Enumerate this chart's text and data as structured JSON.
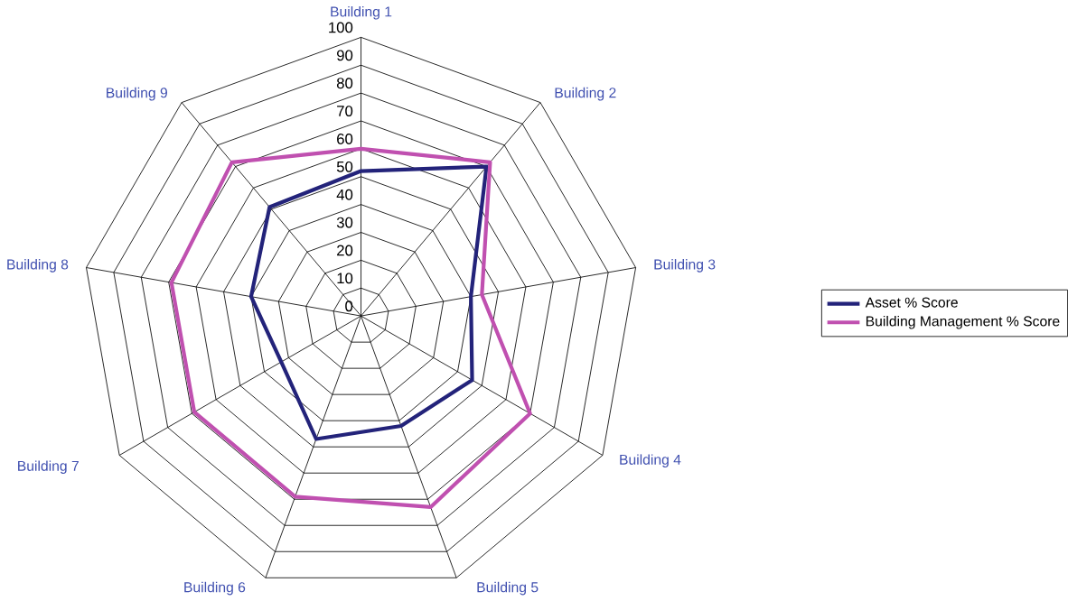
{
  "chart_data": {
    "type": "radar",
    "categories": [
      "Building 1",
      "Building 2",
      "Building 3",
      "Building 4",
      "Building 5",
      "Building 6",
      "Building 7",
      "Building 8",
      "Building 9"
    ],
    "series": [
      {
        "name": "Asset % Score",
        "color": "#23237a",
        "values": [
          52,
          70,
          40,
          46,
          42,
          47,
          33,
          40,
          51
        ]
      },
      {
        "name": "Building Management % Score",
        "color": "#c050b0",
        "values": [
          60,
          72,
          44,
          70,
          73,
          69,
          69,
          69,
          72
        ]
      }
    ],
    "ylim": [
      0,
      100
    ],
    "yticks": [
      0,
      10,
      20,
      30,
      40,
      50,
      60,
      70,
      80,
      90,
      100
    ],
    "grid": true,
    "legend": "right"
  }
}
